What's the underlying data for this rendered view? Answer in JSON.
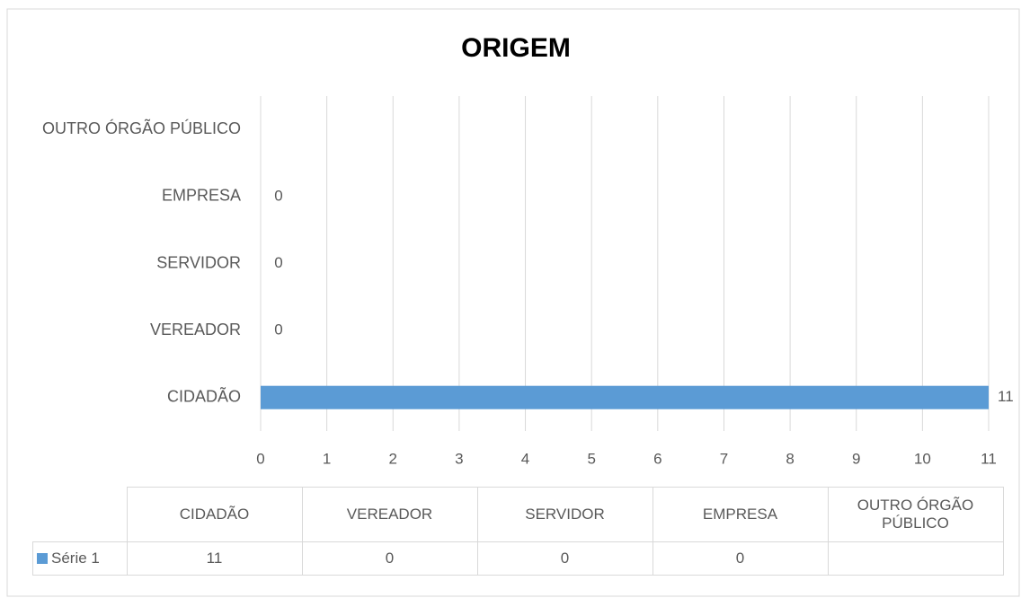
{
  "chart_data": {
    "type": "bar",
    "orientation": "horizontal",
    "title": "ORIGEM",
    "categories": [
      "CIDADÃO",
      "VEREADOR",
      "SERVIDOR",
      "EMPRESA",
      "OUTRO ÓRGÃO PÚBLICO"
    ],
    "series": [
      {
        "name": "Série 1",
        "color": "#5b9bd5",
        "values": [
          11,
          0,
          0,
          0,
          null
        ]
      }
    ],
    "xlim": [
      0,
      11
    ],
    "xticks": [
      0,
      1,
      2,
      3,
      4,
      5,
      6,
      7,
      8,
      9,
      10,
      11
    ],
    "grid": true,
    "data_table": true
  }
}
